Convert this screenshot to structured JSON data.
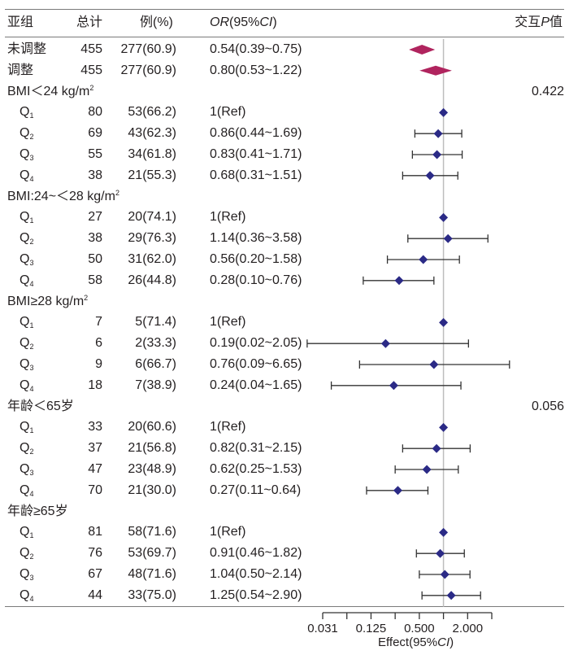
{
  "chart_data": {
    "type": "forest",
    "header": {
      "subgroup": "亚组",
      "total": "总计",
      "cases": "例(%)",
      "or_italic": "OR",
      "or_rest_a": "(95%",
      "or_ci_italic": "CI",
      "or_rest_b": ")",
      "p_prefix": "交互",
      "p_italic": "P",
      "p_suffix": "值"
    },
    "rows": [
      {
        "kind": "overall",
        "label": "未调整",
        "n": "455",
        "cases": "277(60.9)",
        "or_text": "0.54(0.39~0.75)",
        "or": 0.54,
        "lo": 0.39,
        "hi": 0.75
      },
      {
        "kind": "overall",
        "label": "调整",
        "n": "455",
        "cases": "277(60.9)",
        "or_text": "0.80(0.53~1.22)",
        "or": 0.8,
        "lo": 0.53,
        "hi": 1.22
      },
      {
        "kind": "group",
        "label": "BMI＜24 kg/m",
        "sup": "2",
        "p": "0.422"
      },
      {
        "kind": "item",
        "label": "Q",
        "sub": "1",
        "n": "80",
        "cases": "53(66.2)",
        "or_text": "1(Ref)",
        "or": 1.0
      },
      {
        "kind": "item",
        "label": "Q",
        "sub": "2",
        "n": "69",
        "cases": "43(62.3)",
        "or_text": "0.86(0.44~1.69)",
        "or": 0.86,
        "lo": 0.44,
        "hi": 1.69
      },
      {
        "kind": "item",
        "label": "Q",
        "sub": "3",
        "n": "55",
        "cases": "34(61.8)",
        "or_text": "0.83(0.41~1.71)",
        "or": 0.83,
        "lo": 0.41,
        "hi": 1.71
      },
      {
        "kind": "item",
        "label": "Q",
        "sub": "4",
        "n": "38",
        "cases": "21(55.3)",
        "or_text": "0.68(0.31~1.51)",
        "or": 0.68,
        "lo": 0.31,
        "hi": 1.51
      },
      {
        "kind": "group",
        "label": "BMI:24~＜28 kg/m",
        "sup": "2"
      },
      {
        "kind": "item",
        "label": "Q",
        "sub": "1",
        "n": "27",
        "cases": "20(74.1)",
        "or_text": "1(Ref)",
        "or": 1.0
      },
      {
        "kind": "item",
        "label": "Q",
        "sub": "2",
        "n": "38",
        "cases": "29(76.3)",
        "or_text": "1.14(0.36~3.58)",
        "or": 1.14,
        "lo": 0.36,
        "hi": 3.58
      },
      {
        "kind": "item",
        "label": "Q",
        "sub": "3",
        "n": "50",
        "cases": "31(62.0)",
        "or_text": "0.56(0.20~1.58)",
        "or": 0.56,
        "lo": 0.2,
        "hi": 1.58
      },
      {
        "kind": "item",
        "label": "Q",
        "sub": "4",
        "n": "58",
        "cases": "26(44.8)",
        "or_text": "0.28(0.10~0.76)",
        "or": 0.28,
        "lo": 0.1,
        "hi": 0.76
      },
      {
        "kind": "group",
        "label": "BMI≥28 kg/m",
        "sup": "2"
      },
      {
        "kind": "item",
        "label": "Q",
        "sub": "1",
        "n": "7",
        "cases": "5(71.4)",
        "or_text": "1(Ref)",
        "or": 1.0
      },
      {
        "kind": "item",
        "label": "Q",
        "sub": "2",
        "n": "6",
        "cases": "2(33.3)",
        "or_text": "0.19(0.02~2.05)",
        "or": 0.19,
        "lo": 0.02,
        "hi": 2.05
      },
      {
        "kind": "item",
        "label": "Q",
        "sub": "3",
        "n": "9",
        "cases": "6(66.7)",
        "or_text": "0.76(0.09~6.65)",
        "or": 0.76,
        "lo": 0.09,
        "hi": 6.65
      },
      {
        "kind": "item",
        "label": "Q",
        "sub": "4",
        "n": "18",
        "cases": "7(38.9)",
        "or_text": "0.24(0.04~1.65)",
        "or": 0.24,
        "lo": 0.04,
        "hi": 1.65
      },
      {
        "kind": "group",
        "label": "年龄＜65岁",
        "p": "0.056"
      },
      {
        "kind": "item",
        "label": "Q",
        "sub": "1",
        "n": "33",
        "cases": "20(60.6)",
        "or_text": "1(Ref)",
        "or": 1.0
      },
      {
        "kind": "item",
        "label": "Q",
        "sub": "2",
        "n": "37",
        "cases": "21(56.8)",
        "or_text": "0.82(0.31~2.15)",
        "or": 0.82,
        "lo": 0.31,
        "hi": 2.15
      },
      {
        "kind": "item",
        "label": "Q",
        "sub": "3",
        "n": "47",
        "cases": "23(48.9)",
        "or_text": "0.62(0.25~1.53)",
        "or": 0.62,
        "lo": 0.25,
        "hi": 1.53
      },
      {
        "kind": "item",
        "label": "Q",
        "sub": "4",
        "n": "70",
        "cases": "21(30.0)",
        "or_text": "0.27(0.11~0.64)",
        "or": 0.27,
        "lo": 0.11,
        "hi": 0.64
      },
      {
        "kind": "group",
        "label": "年龄≥65岁"
      },
      {
        "kind": "item",
        "label": "Q",
        "sub": "1",
        "n": "81",
        "cases": "58(71.6)",
        "or_text": "1(Ref)",
        "or": 1.0
      },
      {
        "kind": "item",
        "label": "Q",
        "sub": "2",
        "n": "76",
        "cases": "53(69.7)",
        "or_text": "0.91(0.46~1.82)",
        "or": 0.91,
        "lo": 0.46,
        "hi": 1.82
      },
      {
        "kind": "item",
        "label": "Q",
        "sub": "3",
        "n": "67",
        "cases": "48(71.6)",
        "or_text": "1.04(0.50~2.14)",
        "or": 1.04,
        "lo": 0.5,
        "hi": 2.14
      },
      {
        "kind": "item",
        "label": "Q",
        "sub": "4",
        "n": "44",
        "cases": "33(75.0)",
        "or_text": "1.25(0.54~2.90)",
        "or": 1.25,
        "lo": 0.54,
        "hi": 2.9
      }
    ],
    "x_axis": {
      "scale": "log2",
      "ticks": [
        "0.031",
        "0.125",
        "0.500",
        "2.000"
      ],
      "tick_values": [
        0.03125,
        0.125,
        0.5,
        2.0
      ],
      "minor_tick_values": [
        0.0625,
        0.25,
        1.0,
        4.0
      ],
      "range": [
        0.03125,
        4.0
      ],
      "label_prefix": "Effect(95%",
      "label_italic": "CI",
      "label_suffix": ")"
    },
    "reference_line": 1.0,
    "colors": {
      "overall_marker": "#b0245e",
      "item_marker": "#2b2a86",
      "ci_line": "#333333",
      "ref_line": "#bdbdbd",
      "axis": "#333333"
    }
  }
}
